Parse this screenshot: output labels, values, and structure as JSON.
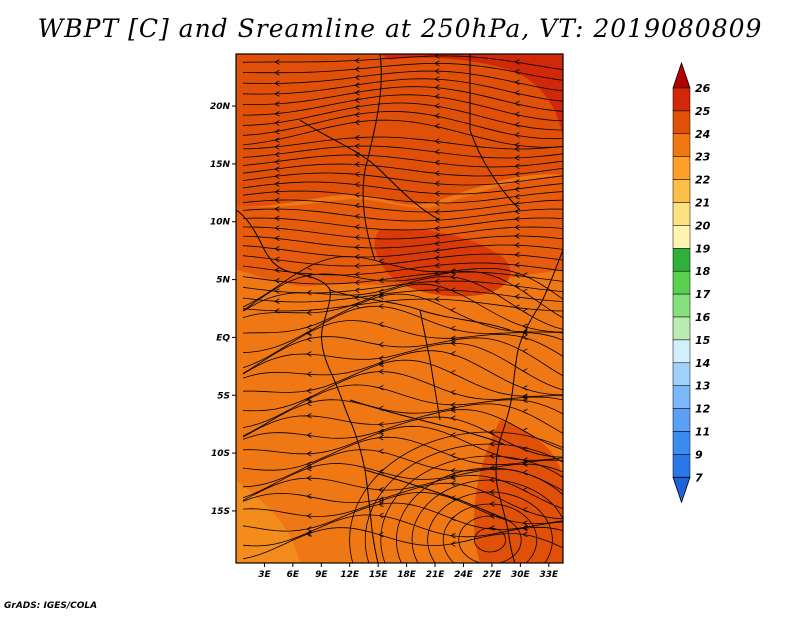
{
  "title": "WBPT [C] and Sreamline at 250hPa, VT: 2019080809",
  "footer": "GrADS: IGES/COLA",
  "map": {
    "lon_ticks": [
      "3E",
      "6E",
      "9E",
      "12E",
      "15E",
      "18E",
      "21E",
      "24E",
      "27E",
      "30E",
      "33E"
    ],
    "lat_ticks": [
      "20N",
      "15N",
      "10N",
      "5N",
      "EQ",
      "5S",
      "10S",
      "15S"
    ],
    "lon_range": [
      0,
      34.5
    ],
    "lat_range": [
      -19.5,
      24.5
    ]
  },
  "colorbar": {
    "labels": [
      "7",
      "9",
      "11",
      "12",
      "13",
      "14",
      "15",
      "16",
      "17",
      "18",
      "19",
      "20",
      "21",
      "22",
      "23",
      "24",
      "25",
      "26"
    ],
    "colors": [
      "#1c64d8",
      "#2878e8",
      "#3c8cf0",
      "#5aa0f5",
      "#7ab8fa",
      "#a0d0fc",
      "#d2f0fc",
      "#b8ecb0",
      "#86e07c",
      "#5ad050",
      "#2eb03a",
      "#fff4b0",
      "#ffe080",
      "#fcc048",
      "#fca028",
      "#f07814",
      "#e05008",
      "#d02808",
      "#b40000"
    ]
  },
  "field": {
    "unit": "C",
    "base_color": "#f07814",
    "warm_color": "#e05008",
    "warmer_color": "#d02808"
  }
}
